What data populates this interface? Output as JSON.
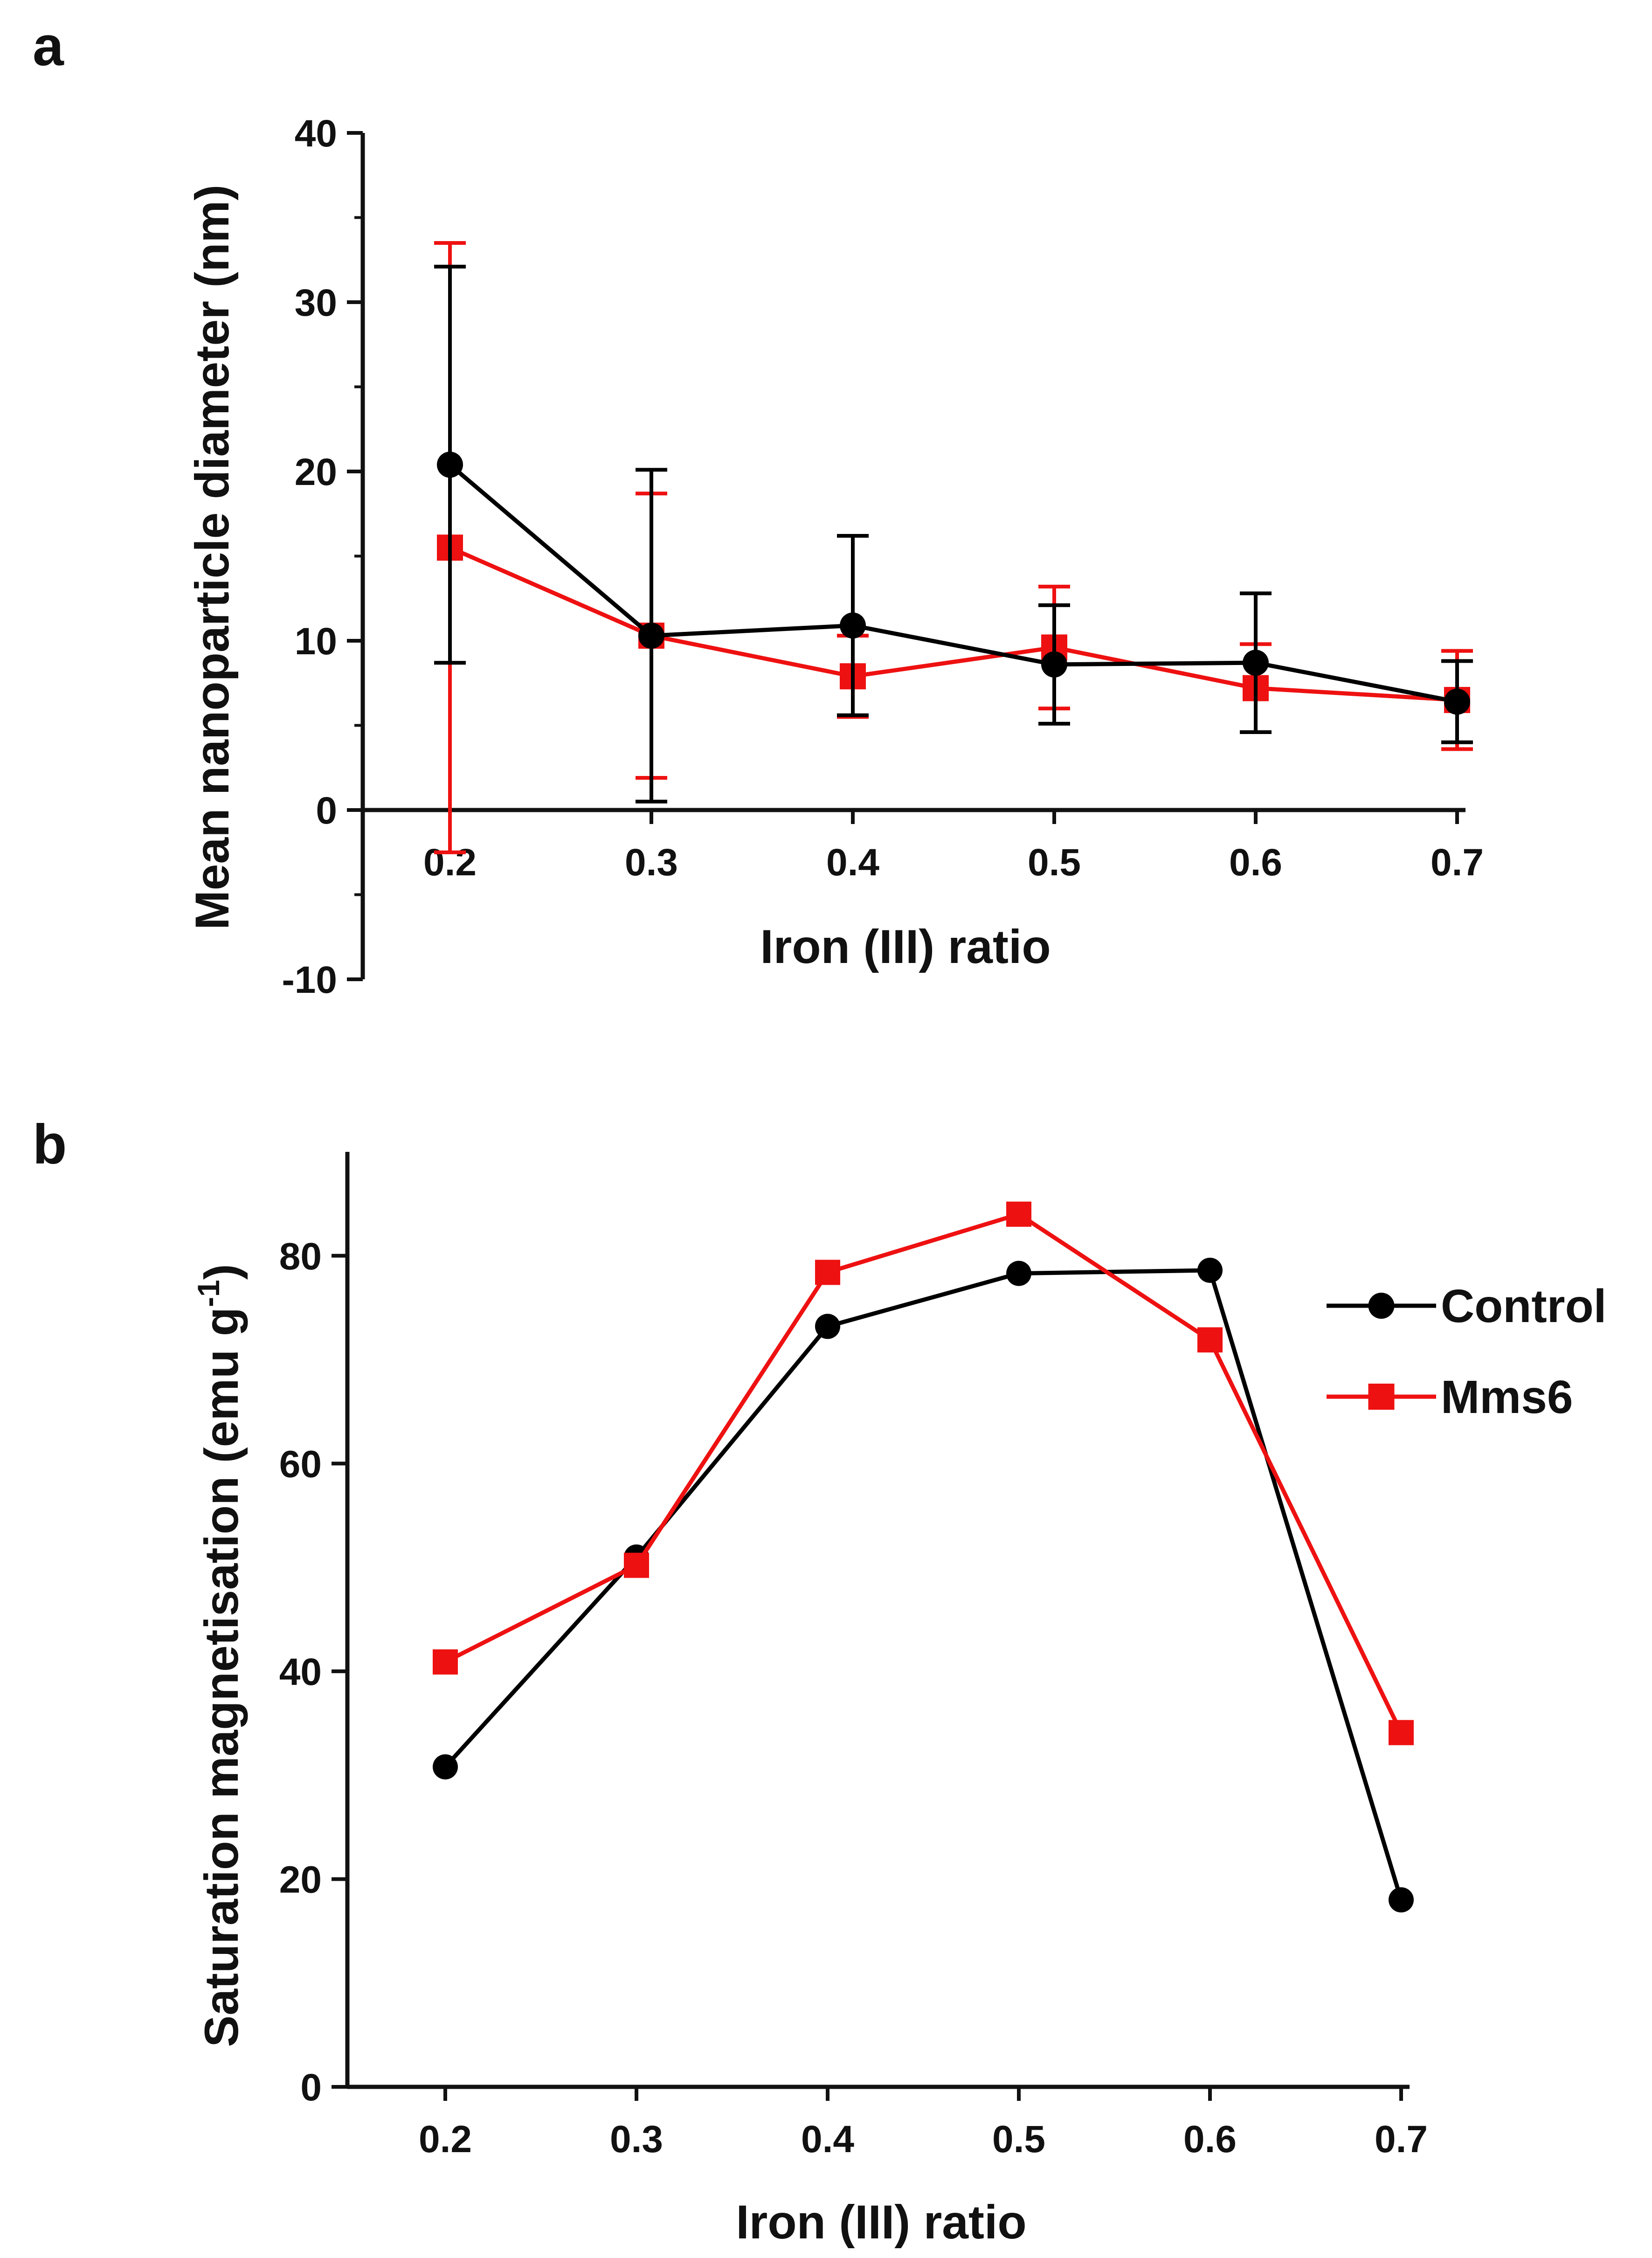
{
  "colors": {
    "control": "#000000",
    "mms6": "#ee1111",
    "axis": "#111111"
  },
  "legend": [
    {
      "name": "Control",
      "color": "#000000",
      "marker": "circle"
    },
    {
      "name": "Mms6",
      "color": "#ee1111",
      "marker": "square"
    }
  ],
  "chart_data": [
    {
      "panel": "a",
      "type": "line",
      "xlabel": "Iron (III) ratio",
      "ylabel": "Mean nanoparticle diameter (nm)",
      "x": [
        0.2,
        0.3,
        0.4,
        0.5,
        0.6,
        0.7
      ],
      "x_tick_labels": [
        "0.2",
        "0.3",
        "0.4",
        "0.5",
        "0.6",
        "0.7"
      ],
      "xlim": [
        0.15,
        0.7
      ],
      "ylim": [
        -10,
        40
      ],
      "y_ticks": [
        -10,
        0,
        10,
        20,
        30,
        40
      ],
      "y_tick_labels": [
        "-10",
        "0",
        "10",
        "20",
        "30",
        "40"
      ],
      "series": [
        {
          "name": "Mms6",
          "marker": "square",
          "values": [
            15.5,
            10.3,
            7.9,
            9.6,
            7.2,
            6.5
          ],
          "error": [
            18.0,
            8.4,
            2.4,
            3.6,
            2.6,
            2.9
          ]
        },
        {
          "name": "Control",
          "marker": "circle",
          "values": [
            20.4,
            10.3,
            10.9,
            8.6,
            8.7,
            6.4
          ],
          "error": [
            11.7,
            9.8,
            5.3,
            3.5,
            4.1,
            2.4
          ]
        }
      ]
    },
    {
      "panel": "b",
      "type": "line",
      "xlabel": "Iron (III) ratio",
      "ylabel": "Saturation magnetisation (emu g",
      "ylabel_superscript": "-1",
      "ylabel_close": ")",
      "x": [
        0.2,
        0.3,
        0.4,
        0.5,
        0.6,
        0.7
      ],
      "x_tick_labels": [
        "0.2",
        "0.3",
        "0.4",
        "0.5",
        "0.6",
        "0.7"
      ],
      "xlim": [
        0.15,
        0.7
      ],
      "ylim": [
        0,
        90
      ],
      "y_ticks": [
        0,
        20,
        40,
        60,
        80
      ],
      "y_tick_labels": [
        "0",
        "20",
        "40",
        "60",
        "80"
      ],
      "legend_position": "right",
      "series": [
        {
          "name": "Control",
          "marker": "circle",
          "values": [
            30.8,
            51.0,
            73.2,
            78.3,
            78.6,
            18.0
          ]
        },
        {
          "name": "Mms6",
          "marker": "square",
          "values": [
            40.9,
            50.2,
            78.4,
            84.0,
            71.9,
            34.1
          ]
        }
      ]
    }
  ]
}
